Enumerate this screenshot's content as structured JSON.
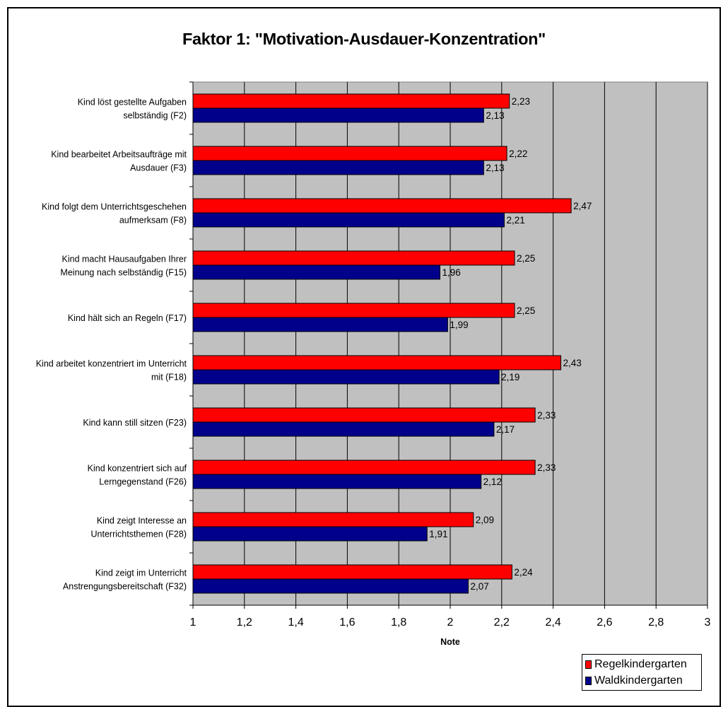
{
  "chart_data": {
    "type": "bar",
    "orientation": "horizontal",
    "title": "Faktor 1: \"Motivation-Ausdauer-Konzentration\"",
    "xlabel": "Note",
    "ylabel": "",
    "xlim": [
      1,
      3
    ],
    "x_ticks": [
      "1",
      "1,2",
      "1,4",
      "1,6",
      "1,8",
      "2",
      "2,2",
      "2,4",
      "2,6",
      "2,8",
      "3"
    ],
    "grid": true,
    "legend_position": "bottom-right",
    "categories": [
      [
        "Kind löst gestellte Aufgaben",
        "selbständig (F2)"
      ],
      [
        "Kind bearbeitet Arbeitsaufträge mit",
        "Ausdauer (F3)"
      ],
      [
        "Kind folgt dem Unterrichtsgeschehen",
        "aufmerksam (F8)"
      ],
      [
        "Kind macht Hausaufgaben Ihrer",
        "Meinung nach selbständig (F15)"
      ],
      [
        "Kind hält sich an Regeln (F17)"
      ],
      [
        "Kind arbeitet konzentriert im Unterricht",
        "mit (F18)"
      ],
      [
        "Kind kann still sitzen (F23)"
      ],
      [
        "Kind konzentriert sich auf",
        "Lerngegenstand (F26)"
      ],
      [
        "Kind zeigt Interesse an",
        "Unterrichtsthemen (F28)"
      ],
      [
        "Kind zeigt im Unterricht",
        "Anstrengungsbereitschaft (F32)"
      ]
    ],
    "series": [
      {
        "name": "Regelkindergarten",
        "color": "#ff0000",
        "values": [
          2.23,
          2.22,
          2.47,
          2.25,
          2.25,
          2.43,
          2.33,
          2.33,
          2.09,
          2.24
        ],
        "value_labels": [
          "2,23",
          "2,22",
          "2,47",
          "2,25",
          "2,25",
          "2,43",
          "2,33",
          "2,33",
          "2,09",
          "2,24"
        ]
      },
      {
        "name": "Waldkindergarten",
        "color": "#00008b",
        "values": [
          2.13,
          2.13,
          2.21,
          1.96,
          1.99,
          2.19,
          2.17,
          2.12,
          1.91,
          2.07
        ],
        "value_labels": [
          "2,13",
          "2,13",
          "2,21",
          "1,96",
          "1,99",
          "2,19",
          "2,17",
          "2,12",
          "1,91",
          "2,07"
        ]
      }
    ],
    "plot_background": "#c0c0c0"
  }
}
